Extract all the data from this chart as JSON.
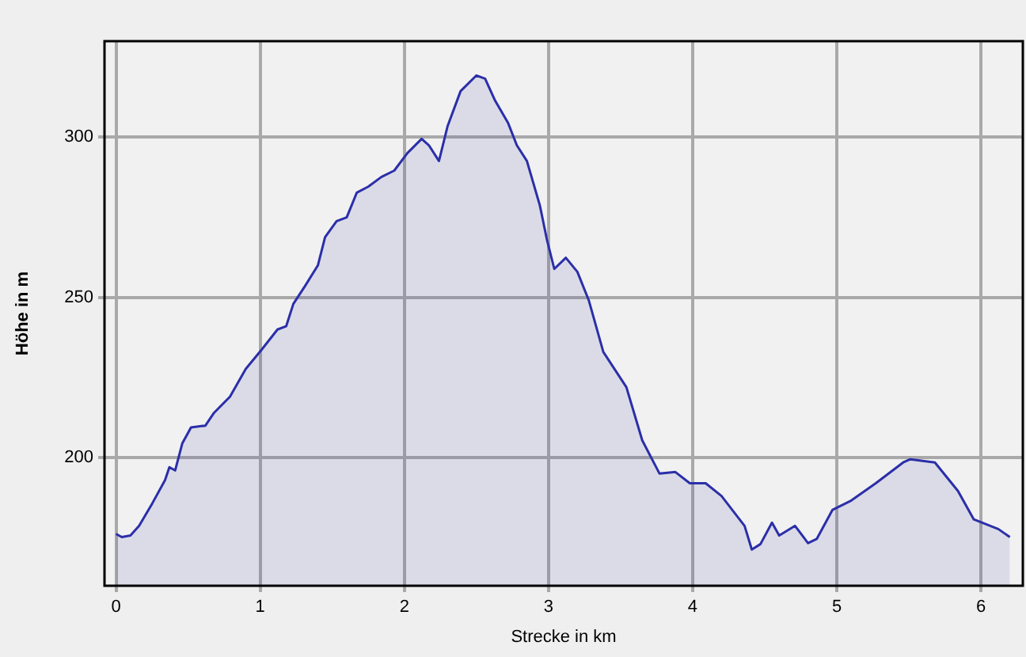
{
  "chart_data": {
    "type": "area",
    "xlabel": "Strecke in km",
    "ylabel": "Höhe in m",
    "x": [
      0,
      0.04,
      0.1,
      0.16,
      0.25,
      0.34,
      0.37,
      0.41,
      0.46,
      0.52,
      0.62,
      0.68,
      0.79,
      0.9,
      1.01,
      1.12,
      1.18,
      1.23,
      1.31,
      1.4,
      1.45,
      1.53,
      1.6,
      1.67,
      1.75,
      1.84,
      1.93,
      2.02,
      2.12,
      2.17,
      2.24,
      2.3,
      2.39,
      2.5,
      2.56,
      2.63,
      2.72,
      2.78,
      2.85,
      2.94,
      2.99,
      3.04,
      3.12,
      3.2,
      3.28,
      3.38,
      3.54,
      3.65,
      3.77,
      3.88,
      3.98,
      4.09,
      4.2,
      4.36,
      4.41,
      4.47,
      4.55,
      4.6,
      4.71,
      4.8,
      4.86,
      4.97,
      5.1,
      5.27,
      5.46,
      5.51,
      5.68,
      5.84,
      5.95,
      6.12,
      6.2
    ],
    "series": [
      {
        "color": "#2b2fa8",
        "values": [
          176.2,
          175.2,
          175.7,
          178.7,
          185.6,
          193,
          197,
          196,
          204.5,
          209.4,
          210,
          214,
          219,
          227.7,
          233.7,
          240,
          241,
          248,
          253.5,
          260,
          268.8,
          273.8,
          275,
          282.7,
          284.6,
          287.6,
          289.6,
          295,
          299.5,
          297.5,
          292.6,
          303.5,
          314.4,
          319.3,
          318.3,
          311.4,
          304.4,
          297.5,
          292.6,
          278.7,
          267.8,
          258.9,
          262.4,
          258,
          249,
          233,
          222,
          205.4,
          195,
          195.5,
          192,
          192,
          188,
          178.7,
          171.3,
          173,
          179.7,
          175.7,
          178.7,
          173.3,
          174.6,
          183.7,
          186.6,
          192,
          198.5,
          199.5,
          198.5,
          189.6,
          180.7,
          177.7,
          175.2
        ]
      }
    ],
    "xlim": [
      -0.08,
      6.29
    ],
    "ylim": [
      160,
      330
    ],
    "xticks": [
      0,
      1,
      2,
      3,
      4,
      5,
      6
    ],
    "yticks": [
      200,
      250,
      300
    ],
    "grid": true,
    "legend": false,
    "marker": "none",
    "line_style": "solid"
  }
}
